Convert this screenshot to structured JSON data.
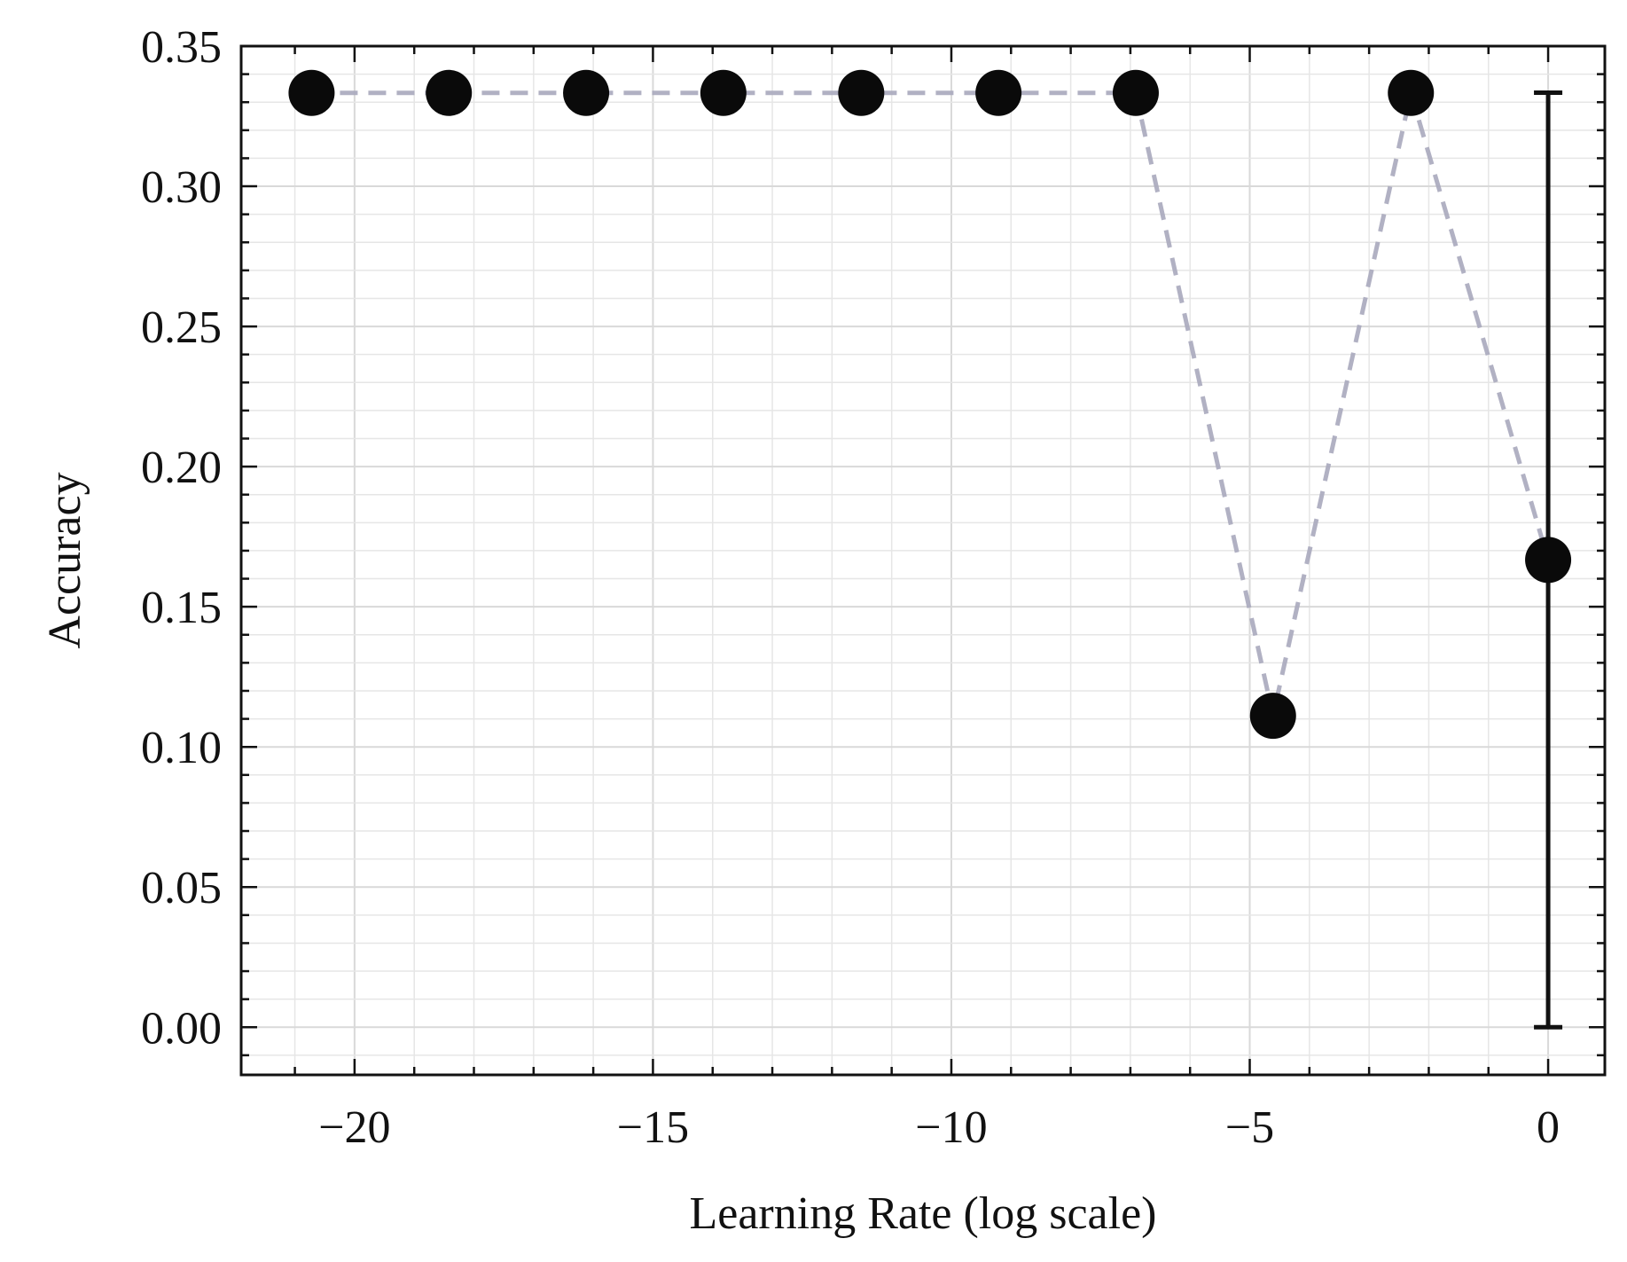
{
  "chart_data": {
    "type": "scatter",
    "title": "",
    "xlabel": "Learning Rate (log scale)",
    "ylabel": "Accuracy",
    "xlim": [
      -21.9,
      0.95
    ],
    "ylim": [
      -0.017,
      0.35
    ],
    "x_ticks": [
      -20,
      -15,
      -10,
      -5,
      0
    ],
    "x_tick_labels": [
      "−20",
      "−15",
      "−10",
      "−5",
      "0"
    ],
    "x_minor_step": 1,
    "y_ticks": [
      0.0,
      0.05,
      0.1,
      0.15,
      0.2,
      0.25,
      0.3,
      0.35
    ],
    "y_tick_labels": [
      "0.00",
      "0.05",
      "0.10",
      "0.15",
      "0.20",
      "0.25",
      "0.30",
      "0.35"
    ],
    "y_minor_step": 0.01,
    "grid": true,
    "series": [
      {
        "x": [
          -20.72,
          -18.42,
          -16.12,
          -13.82,
          -11.51,
          -9.21,
          -6.91,
          -4.61,
          -2.3,
          0.0
        ],
        "y": [
          0.3333,
          0.3333,
          0.3333,
          0.3333,
          0.3333,
          0.3333,
          0.3333,
          0.1111,
          0.3333,
          0.1667
        ],
        "yerr": [
          0,
          0,
          0,
          0,
          0,
          0,
          0,
          0,
          0,
          0.1667
        ],
        "marker_color": "#0a0a0a",
        "line_color": "#a9a8bd",
        "line_style": "dashed"
      }
    ]
  }
}
